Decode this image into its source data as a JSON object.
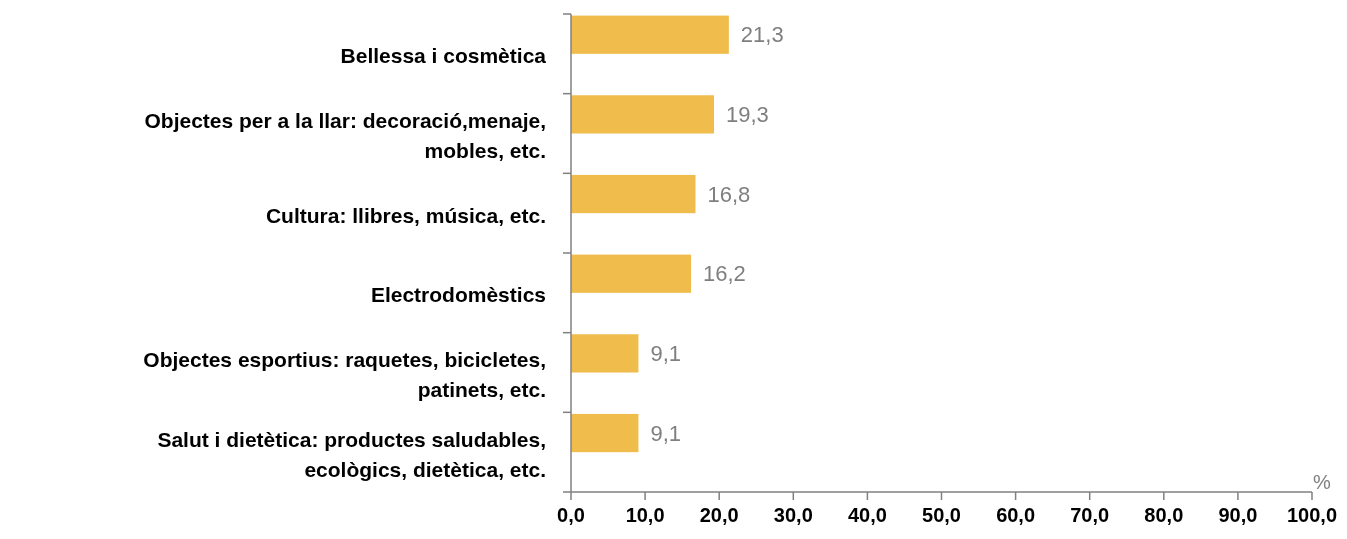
{
  "chart_data": {
    "type": "bar",
    "orientation": "horizontal",
    "categories": [
      "Bellessa i cosmètica",
      "Objectes per a la llar: decoració,menaje, mobles, etc.",
      "Cultura: llibres, música, etc.",
      "Electrodomèstics",
      "Objectes esportius: raquetes, bicicletes, patinets, etc.",
      "Salut i dietètica: productes saludables, ecològics, dietètica, etc."
    ],
    "values": [
      21.3,
      19.3,
      16.8,
      16.2,
      9.1,
      9.1
    ],
    "value_labels": [
      "21,3",
      "19,3",
      "16,8",
      "16,2",
      "9,1",
      "9,1"
    ],
    "color": "#f0bc4c",
    "xlabel": "%",
    "xlim": [
      0,
      100
    ],
    "xticks": [
      {
        "value": 0,
        "label": "0,0"
      },
      {
        "value": 10,
        "label": "10,0"
      },
      {
        "value": 20,
        "label": "20,0"
      },
      {
        "value": 30,
        "label": "30,0"
      },
      {
        "value": 40,
        "label": "40,0"
      },
      {
        "value": 50,
        "label": "50,0"
      },
      {
        "value": 60,
        "label": "60,0"
      },
      {
        "value": 70,
        "label": "70,0"
      },
      {
        "value": 80,
        "label": "80,0"
      },
      {
        "value": 90,
        "label": "90,0"
      },
      {
        "value": 100,
        "label": "100,0"
      }
    ],
    "grid": false
  }
}
